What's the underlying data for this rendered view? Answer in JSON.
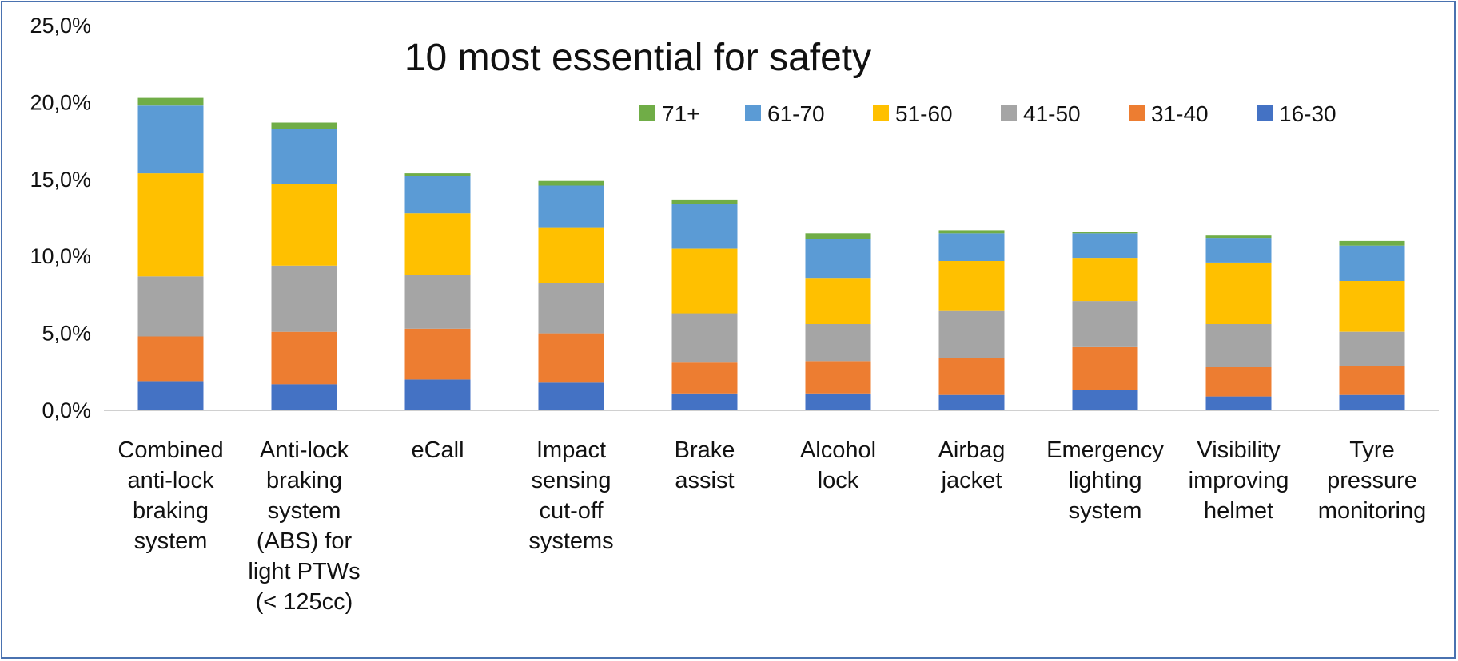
{
  "chart_data": {
    "type": "bar",
    "stacked": true,
    "title": "10 most essential for safety",
    "xlabel": "",
    "ylabel": "",
    "ylim": [
      0,
      25
    ],
    "y_ticks": [
      "0,0%",
      "5,0%",
      "10,0%",
      "15,0%",
      "20,0%",
      "25,0%"
    ],
    "y_tick_values": [
      0,
      5,
      10,
      15,
      20,
      25
    ],
    "grid": false,
    "legend_position": "top-right",
    "legend_order": [
      "71+",
      "61-70",
      "51-60",
      "41-50",
      "31-40",
      "16-30"
    ],
    "categories": [
      [
        "Combined",
        "anti-lock",
        "braking",
        "system"
      ],
      [
        "Anti-lock",
        "braking",
        "system",
        "(ABS) for",
        "light PTWs",
        "(< 125cc)"
      ],
      [
        "eCall"
      ],
      [
        "Impact",
        "sensing",
        "cut-off",
        "systems"
      ],
      [
        "Brake",
        "assist"
      ],
      [
        "Alcohol",
        "lock"
      ],
      [
        "Airbag",
        "jacket"
      ],
      [
        "Emergency",
        "lighting",
        "system"
      ],
      [
        "Visibility",
        "improving",
        "helmet"
      ],
      [
        "Tyre",
        "pressure",
        "monitoring"
      ]
    ],
    "series": [
      {
        "name": "16-30",
        "color": "#4472c4",
        "values": [
          1.9,
          1.7,
          2.0,
          1.8,
          1.1,
          1.1,
          1.0,
          1.3,
          0.9,
          1.0
        ]
      },
      {
        "name": "31-40",
        "color": "#ed7d31",
        "values": [
          2.9,
          3.4,
          3.3,
          3.2,
          2.0,
          2.1,
          2.4,
          2.8,
          1.9,
          1.9
        ]
      },
      {
        "name": "41-50",
        "color": "#a5a5a5",
        "values": [
          3.9,
          4.3,
          3.5,
          3.3,
          3.2,
          2.4,
          3.1,
          3.0,
          2.8,
          2.2
        ]
      },
      {
        "name": "51-60",
        "color": "#ffc000",
        "values": [
          6.7,
          5.3,
          4.0,
          3.6,
          4.2,
          3.0,
          3.2,
          2.8,
          4.0,
          3.3
        ]
      },
      {
        "name": "61-70",
        "color": "#5b9bd5",
        "values": [
          4.4,
          3.6,
          2.4,
          2.7,
          2.9,
          2.5,
          1.8,
          1.6,
          1.6,
          2.3
        ]
      },
      {
        "name": "71+",
        "color": "#70ad47",
        "values": [
          0.5,
          0.4,
          0.2,
          0.3,
          0.3,
          0.4,
          0.2,
          0.1,
          0.2,
          0.3
        ]
      }
    ]
  }
}
